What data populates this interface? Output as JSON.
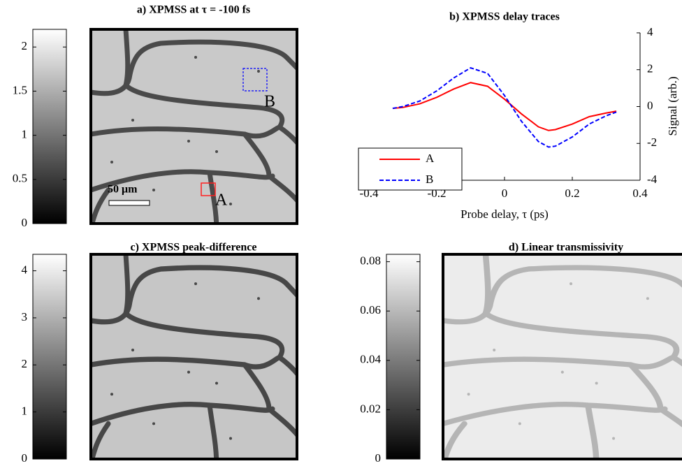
{
  "chart_data": [
    {
      "type": "image",
      "title": "a) XPMSS at τ = -100 fs",
      "ylim": [
        0,
        2.2
      ],
      "yticks": [
        0,
        0.5,
        1,
        1.5,
        2
      ],
      "annotations": [
        "A",
        "B",
        "50 μm"
      ]
    },
    {
      "type": "line",
      "title": "b) XPMSS delay traces",
      "xlabel": "Probe delay, τ (ps)",
      "ylabel": "Signal (arb.)",
      "x": [
        -0.33,
        -0.3,
        -0.25,
        -0.2,
        -0.15,
        -0.1,
        -0.05,
        0,
        0.05,
        0.1,
        0.13,
        0.15,
        0.2,
        0.25,
        0.3,
        0.33
      ],
      "series": [
        {
          "name": "A",
          "color": "#ff0000",
          "values": [
            -0.1,
            -0.05,
            0.15,
            0.5,
            0.95,
            1.3,
            1.1,
            0.4,
            -0.4,
            -1.1,
            -1.3,
            -1.25,
            -0.95,
            -0.55,
            -0.35,
            -0.25
          ]
        },
        {
          "name": "B",
          "color": "#0000ff",
          "values": [
            -0.1,
            0,
            0.3,
            0.85,
            1.55,
            2.1,
            1.8,
            0.6,
            -0.8,
            -1.9,
            -2.2,
            -2.15,
            -1.65,
            -0.95,
            -0.5,
            -0.3
          ]
        }
      ],
      "xlim": [
        -0.4,
        0.4
      ],
      "xticks": [
        -0.4,
        -0.2,
        0,
        0.2,
        0.4
      ],
      "ylim": [
        -4,
        4
      ],
      "yticks": [
        -4,
        -2,
        0,
        2,
        4
      ],
      "legend": "lower left"
    },
    {
      "type": "image",
      "title": "c) XPMSS peak-difference",
      "ylim": [
        0,
        4.35
      ],
      "yticks": [
        0,
        1,
        2,
        3,
        4
      ]
    },
    {
      "type": "image",
      "title": "d) Linear transmissivity",
      "ylim": [
        0,
        0.083
      ],
      "yticks": [
        0,
        0.02,
        0.04,
        0.06,
        0.08
      ]
    }
  ]
}
